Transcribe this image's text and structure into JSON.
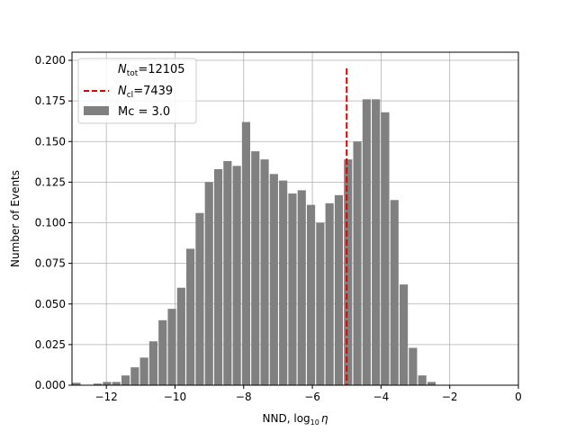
{
  "chart_data": {
    "type": "bar",
    "xlabel_main": "NND, log",
    "xlabel_sub": "10",
    "xlabel_sym": "η",
    "ylabel": "Number of Events",
    "xlim": [
      -13,
      0
    ],
    "ylim": [
      0,
      0.205
    ],
    "xticks": [
      -12,
      -10,
      -8,
      -6,
      -4,
      -2,
      0
    ],
    "xtick_labels": [
      "−12",
      "−10",
      "−8",
      "−6",
      "−4",
      "−2",
      "0"
    ],
    "yticks": [
      0,
      0.025,
      0.05,
      0.075,
      0.1,
      0.125,
      0.15,
      0.175,
      0.2
    ],
    "ytick_labels": [
      "0.000",
      "0.025",
      "0.050",
      "0.075",
      "0.100",
      "0.125",
      "0.150",
      "0.175",
      "0.200"
    ],
    "grid": true,
    "legend_position": "top-left",
    "bar_color": "#808080",
    "bar_width": 0.24,
    "bars": {
      "x": [
        -12.87,
        -12.25,
        -11.98,
        -11.71,
        -11.44,
        -11.17,
        -10.9,
        -10.63,
        -10.36,
        -10.09,
        -9.82,
        -9.55,
        -9.28,
        -9.01,
        -8.74,
        -8.47,
        -8.2,
        -7.93,
        -7.66,
        -7.39,
        -7.12,
        -6.85,
        -6.58,
        -6.31,
        -6.04,
        -5.77,
        -5.5,
        -5.23,
        -4.96,
        -4.69,
        -4.42,
        -4.15,
        -3.88,
        -3.61,
        -3.34,
        -3.07,
        -2.8,
        -2.53,
        -2.26,
        -1.99,
        -1.72
      ],
      "values": [
        0.0015,
        0.001,
        0.002,
        0.002,
        0.006,
        0.011,
        0.017,
        0.027,
        0.04,
        0.047,
        0.06,
        0.084,
        0.106,
        0.125,
        0.133,
        0.138,
        0.135,
        0.162,
        0.144,
        0.139,
        0.13,
        0.126,
        0.118,
        0.12,
        0.111,
        0.1,
        0.112,
        0.117,
        0.139,
        0.15,
        0.176,
        0.176,
        0.168,
        0.114,
        0.062,
        0.023,
        0.006,
        0.002,
        0,
        0,
        0
      ]
    },
    "threshold": {
      "x": -5.0,
      "y_top": 0.195,
      "color": "#e00000"
    },
    "legend": {
      "entry1_sym": "N",
      "entry1_sub": "tot",
      "entry1_value": "=12105",
      "entry2_sym": "N",
      "entry2_sub": "cl",
      "entry2_value": "=7439",
      "entry3_label": "Mc = 3.0"
    }
  }
}
